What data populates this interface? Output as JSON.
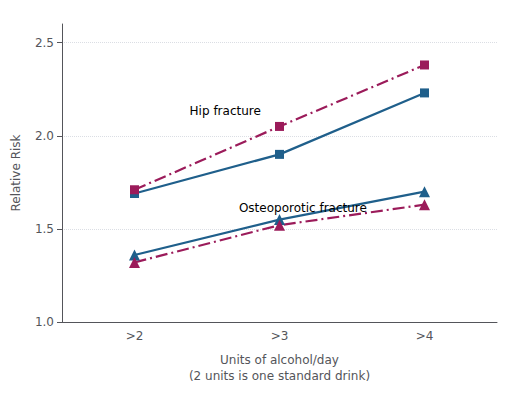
{
  "chart_data": {
    "type": "line",
    "categories": [
      ">2",
      ">3",
      ">4"
    ],
    "series": [
      {
        "color": "#1f5f8b",
        "marker": "square",
        "line_style": "solid",
        "values": [
          1.69,
          1.9,
          2.23
        ]
      },
      {
        "color": "#9b1b5a",
        "marker": "square",
        "line_style": "dashdot",
        "values": [
          1.71,
          2.05,
          2.38
        ]
      },
      {
        "color": "#1f5f8b",
        "marker": "triangle",
        "line_style": "solid",
        "values": [
          1.36,
          1.55,
          1.7
        ]
      },
      {
        "color": "#9b1b5a",
        "marker": "triangle",
        "line_style": "dashdot",
        "values": [
          1.32,
          1.52,
          1.63
        ]
      }
    ],
    "xlabel": "Units of alcohol/day\n(2 units is one standard drink)",
    "ylabel": "Relative Risk",
    "ylim": [
      1.0,
      2.6
    ],
    "yticks": [
      {
        "value": 1.0,
        "label": "1.0"
      },
      1.5,
      {
        "value": 2.0,
        "label": "2.0"
      },
      2.5
    ],
    "grid": true,
    "annotations": [
      {
        "text": "Hip fracture",
        "x": 0.38,
        "y": 2.1
      },
      {
        "text": "Osteoporotic fracture",
        "x": 0.72,
        "y": 1.58
      }
    ]
  }
}
